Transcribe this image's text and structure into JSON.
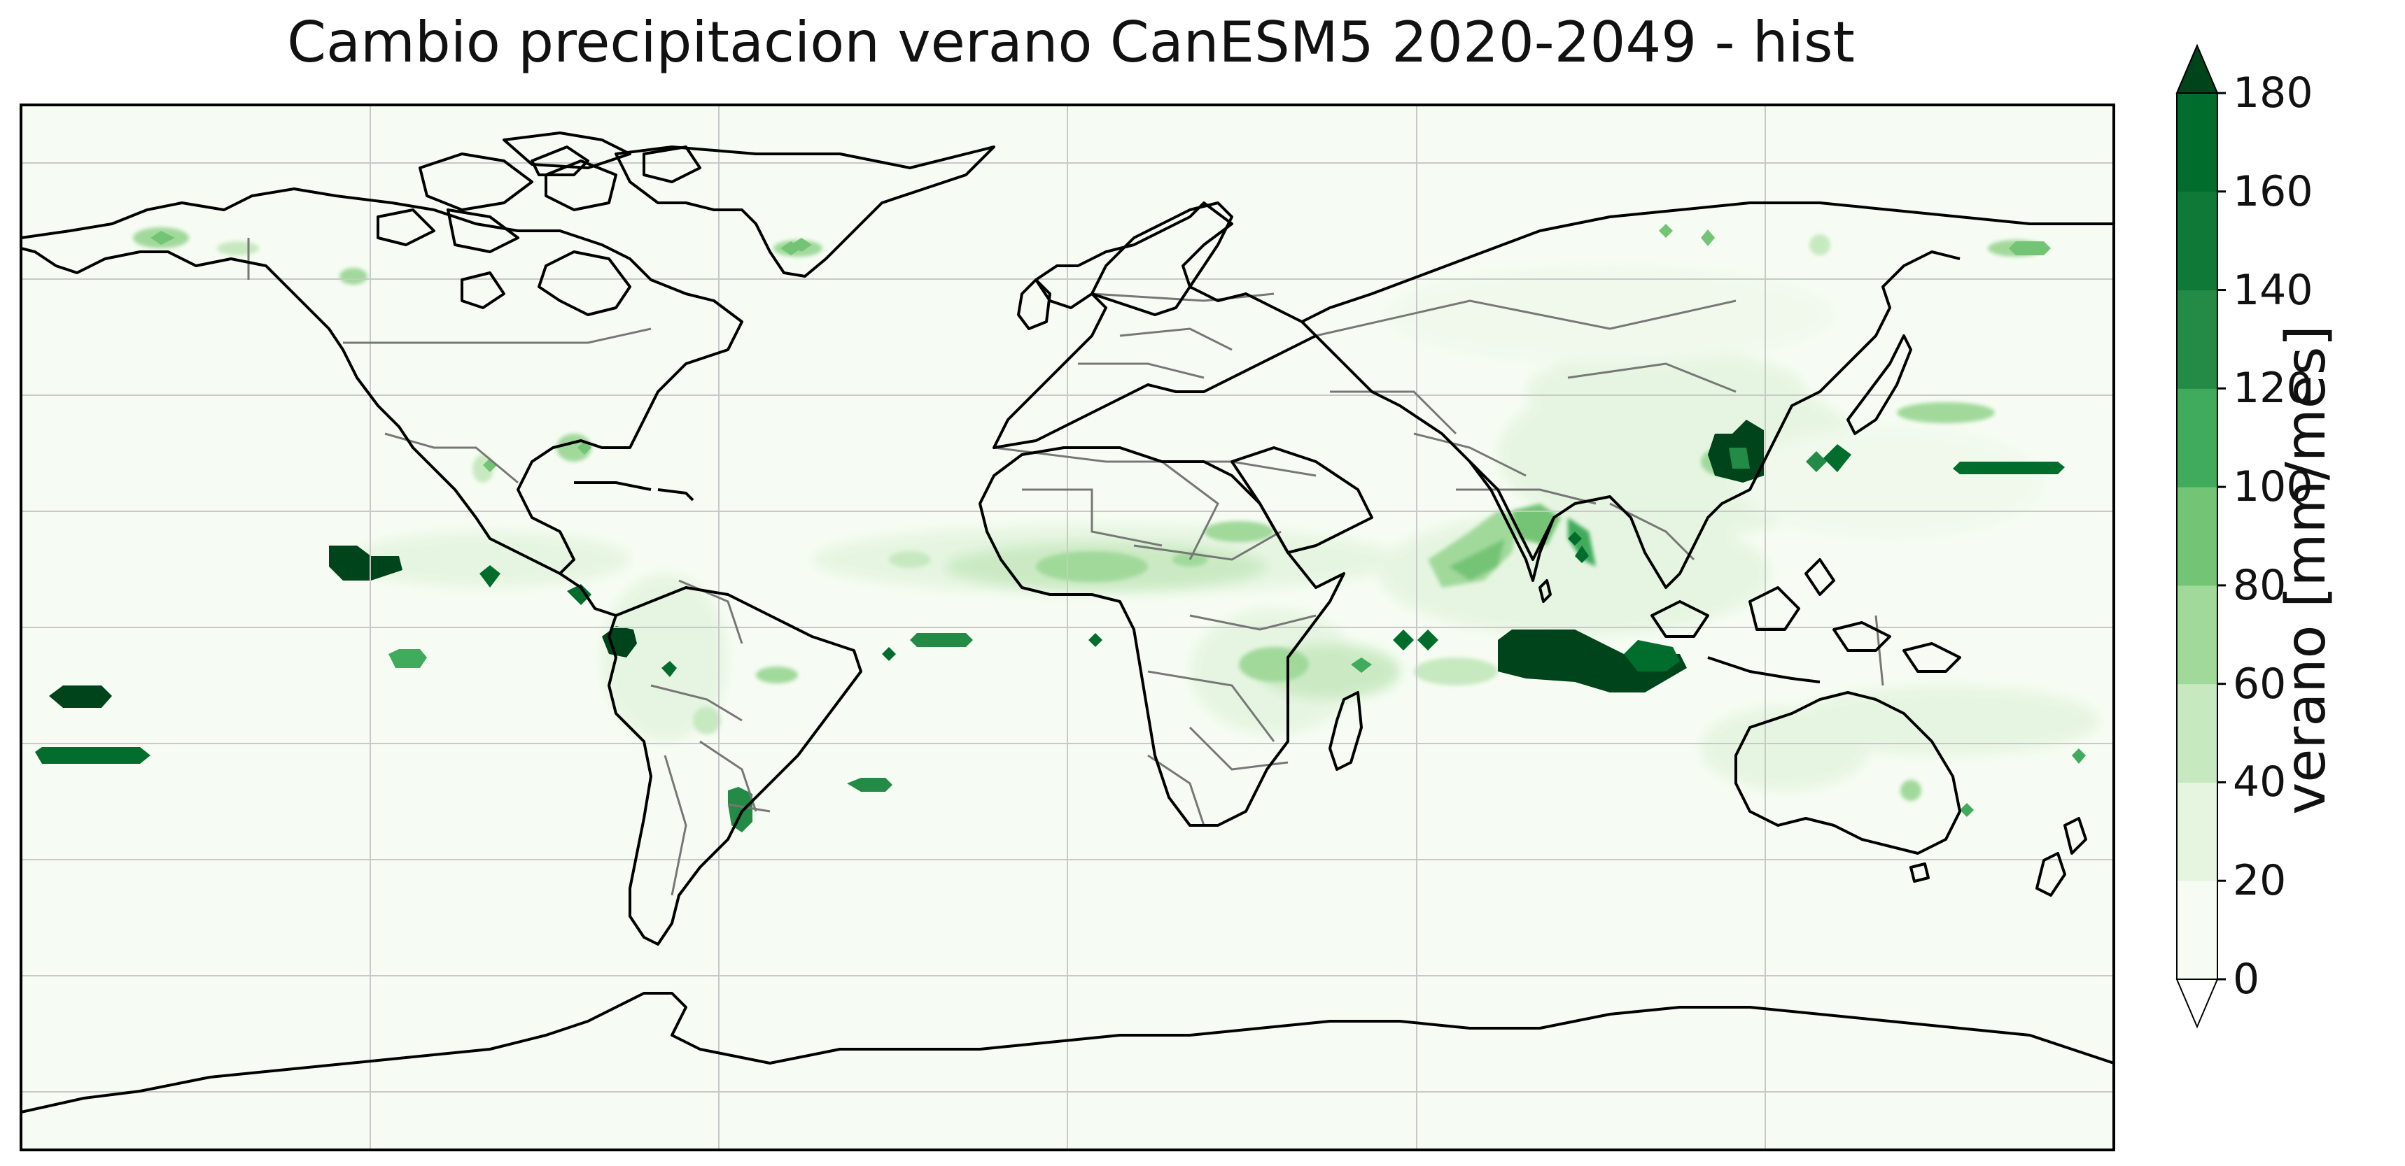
{
  "title": "Cambio precipitacion verano CanESM5 2020-2049 - hist",
  "colorbar": {
    "label": "verano [mm/mes]",
    "levels": [
      0,
      20,
      40,
      60,
      80,
      100,
      120,
      140,
      160,
      180
    ],
    "tick_labels": [
      "0",
      "20",
      "40",
      "60",
      "80",
      "100",
      "120",
      "140",
      "160",
      "180"
    ],
    "colors": [
      "#f6fcf3",
      "#e5f5e0",
      "#c7e9c0",
      "#a1d99b",
      "#74c476",
      "#41ab5d",
      "#238b45",
      "#0f7a37",
      "#006d2c",
      "#00441b"
    ],
    "extend": "both"
  },
  "map": {
    "projection": "PlateCarree",
    "background_color": "#f6fcf3",
    "coastline_color": "#000000",
    "border_color": "#777777",
    "gridlines": true,
    "gridline_color": "#c8c8c8"
  }
}
